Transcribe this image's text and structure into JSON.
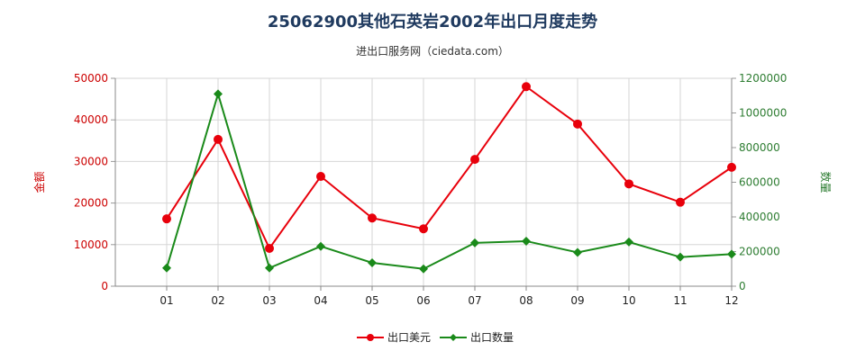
{
  "title": "25062900其他石英岩2002年出口月度走势",
  "subtitle": "进出口服务网（ciedata.com）",
  "chart_data": {
    "type": "line",
    "categories": [
      "01",
      "02",
      "03",
      "04",
      "05",
      "06",
      "07",
      "08",
      "09",
      "10",
      "11",
      "12"
    ],
    "series": [
      {
        "name": "出口美元",
        "axis": "left",
        "color": "#e8000b",
        "values": [
          16200,
          35300,
          9100,
          26400,
          16400,
          13800,
          30500,
          48000,
          39000,
          24600,
          20200,
          28600
        ]
      },
      {
        "name": "出口数量",
        "axis": "right",
        "color": "#1a8a1a",
        "values": [
          105000,
          1110000,
          105000,
          230000,
          135000,
          100000,
          250000,
          260000,
          195000,
          255000,
          168000,
          185000
        ]
      }
    ],
    "ylabel_left": "金额",
    "ylabel_right": "数量",
    "ylim_left": [
      0,
      50000
    ],
    "ylim_right": [
      0,
      1200000
    ],
    "yticks_left": [
      "0",
      "10000",
      "20000",
      "30000",
      "40000",
      "50000"
    ],
    "yticks_right": [
      "0",
      "200000",
      "400000",
      "600000",
      "800000",
      "1000000",
      "1200000"
    ],
    "grid": true,
    "legend_position": "bottom"
  }
}
